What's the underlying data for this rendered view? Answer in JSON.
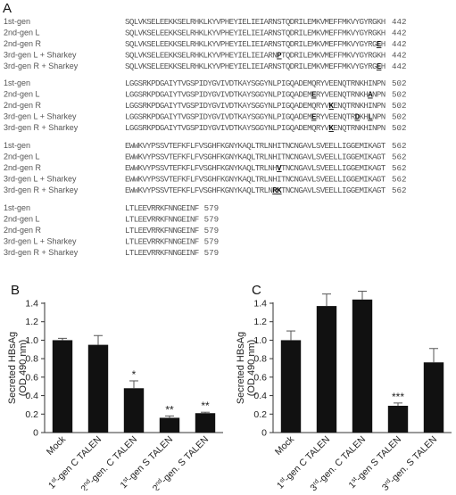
{
  "panels": {
    "a": "A",
    "b": "B",
    "c": "C"
  },
  "alignment": {
    "blocks": [
      {
        "rows": [
          {
            "label": "1st-gen",
            "seq": "SQLVKSELEEKKSELRHKLKYVPHEYIELIEIARNSTQDRILEMKVMEFFMKVYGYRGKH",
            "num": "442",
            "hl": []
          },
          {
            "label": "2nd-gen L",
            "seq": "SQLVKSELEEKKSELRHKLKYVPHEYIELIEIARNSTQDRILEMKVMEFFMKVYGYRGKH",
            "num": "442",
            "hl": []
          },
          {
            "label": "2nd-gen R",
            "seq": "SQLVKSELEEKKSELRHKLKYVPHEYIELIEIARNSTQDRILEMKVMEFFMKVYGYRGEH",
            "num": "442",
            "hl": [
              58
            ]
          },
          {
            "label": "3rd-gen L + Sharkey",
            "seq": "SQLVKSELEEKKSELRHKLKYVPHEYIELIEIARNPTQDRILEMKVMEFFMKVYGYRGKH",
            "num": "442",
            "hl": [
              35
            ]
          },
          {
            "label": "3rd-gen R + Sharkey",
            "seq": "SQLVKSELEEKKSELRHKLKYVPHEYIELIEIARNSTQDRILEMKVMEFFMKVYGYRGEH",
            "num": "442",
            "hl": [
              58
            ]
          }
        ]
      },
      {
        "rows": [
          {
            "label": "1st-gen",
            "seq": "LGGSRKPDGAIYTVGSPIDYGVIVDTKAYSGGYNLPIGQADEMQRYVEENQTRNKHINPN",
            "num": "502",
            "hl": []
          },
          {
            "label": "2nd-gen L",
            "seq": "LGGSRKPDGAIYTVGSPIDYGVIVDTKAYSGGYNLPIGQADEMERYVEENQTRNKHANPN",
            "num": "502",
            "hl": [
              43,
              56
            ]
          },
          {
            "label": "2nd-gen R",
            "seq": "LGGSRKPDGAIYTVGSPIDYGVIVDTKAYSGGYNLPIGQADEMQRYVKENQTRNKHINPN",
            "num": "502",
            "hl": [
              47
            ]
          },
          {
            "label": "3rd-gen L + Sharkey",
            "seq": "LGGSRKPDGAIYTVGSPIDYGVIVDTKAYSGGYNLPIGQADEMERYVEENQTRDKHLNPN",
            "num": "502",
            "hl": [
              43,
              53,
              56
            ]
          },
          {
            "label": "3rd-gen R + Sharkey",
            "seq": "LGGSRKPDGAIYTVGSPIDYGVIVDTKAYSGGYNLPIGQADEMQRYVKENQTRNKHINPN",
            "num": "502",
            "hl": [
              47
            ]
          }
        ]
      },
      {
        "rows": [
          {
            "label": "1st-gen",
            "seq": "EWWKVYPSSVTEFKFLFVSGHFKGNYKAQLTRLNHITNCNGAVLSVEELLIGGEMIKAGT",
            "num": "562",
            "hl": []
          },
          {
            "label": "2nd-gen L",
            "seq": "EWWKVYPSSVTEFKFLFVSGHFKGNYKAQLTRLNHITNCNGAVLSVEELLIGGEMIKAGT",
            "num": "562",
            "hl": []
          },
          {
            "label": "2nd-gen R",
            "seq": "EWWKVYPSSVTEFKFLFVSGHFKGNYKAQLTRLNHVTNCNGAVLSVEELLIGGEMIKAGT",
            "num": "562",
            "hl": [
              35
            ]
          },
          {
            "label": "3rd-gen L + Sharkey",
            "seq": "EWWKVYPSSVTEFKFLFVSGHFKGNYKAQLTRLNHITNCNGAVLSVEELLIGGEMIKAGT",
            "num": "562",
            "hl": []
          },
          {
            "label": "3rd-gen R + Sharkey",
            "seq": "EWWKVYPSSVTEFKFLFVSGHFKGNYKAQLTRLNRKTNCNGAVLSVEELLIGGEMIKAGT",
            "num": "562",
            "hl": [
              34,
              35
            ]
          }
        ]
      },
      {
        "rows": [
          {
            "label": "1st-gen",
            "seq": "LTLEEVRRKFNNGEINF",
            "num": "579",
            "hl": []
          },
          {
            "label": "2nd-gen L",
            "seq": "LTLEEVRRKFNNGEINF",
            "num": "579",
            "hl": []
          },
          {
            "label": "2nd-gen R",
            "seq": "LTLEEVRRKFNNGEINF",
            "num": "579",
            "hl": []
          },
          {
            "label": "3rd-gen L + Sharkey",
            "seq": "LTLEEVRRKFNNGEINF",
            "num": "579",
            "hl": []
          },
          {
            "label": "3rd-gen R + Sharkey",
            "seq": "LTLEEVRRKFNNGEINF",
            "num": "579",
            "hl": []
          }
        ]
      }
    ]
  },
  "chart_data": [
    {
      "type": "bar",
      "panel": "B",
      "ylabel": "Secreted HBsAg (OD 490 nm)",
      "ylabel_lines": [
        "Secreted HBsAg",
        "(OD 490 nm)"
      ],
      "ylim": [
        0,
        1.4
      ],
      "yticks": [
        "0",
        "0.2",
        "0.4",
        "0.6",
        "0.8",
        "1.0",
        "1.2",
        "1.4"
      ],
      "categories": [
        "Mock",
        "1st-gen C TALEN",
        "2nd-gen. C TALEN",
        "1st-gen S TALEN",
        "2nd-gen. S TALEN"
      ],
      "values": [
        1.0,
        0.95,
        0.48,
        0.16,
        0.21
      ],
      "errors": [
        0.02,
        0.1,
        0.08,
        0.02,
        0.01
      ],
      "significance": [
        "",
        "",
        "*",
        "**",
        "**"
      ],
      "bar_color": "#111111"
    },
    {
      "type": "bar",
      "panel": "C",
      "ylabel": "Secreted HBsAg (OD 490 nm)",
      "ylabel_lines": [
        "Secreted HBsAg",
        "(OD 490 nm)"
      ],
      "ylim": [
        0,
        1.4
      ],
      "yticks": [
        "0",
        "0.2",
        "0.4",
        "0.6",
        "0.8",
        "1.0",
        "1.2",
        "1.4"
      ],
      "categories": [
        "Mock",
        "1st-gen C TALEN",
        "3rd-gen. C TALEN",
        "1st-gen S TALEN",
        "3rd-gen. S TALEN"
      ],
      "values": [
        1.0,
        1.37,
        1.44,
        0.29,
        0.76
      ],
      "errors": [
        0.1,
        0.13,
        0.09,
        0.03,
        0.15
      ],
      "significance": [
        "",
        "",
        "",
        "***",
        ""
      ],
      "bar_color": "#111111"
    }
  ]
}
